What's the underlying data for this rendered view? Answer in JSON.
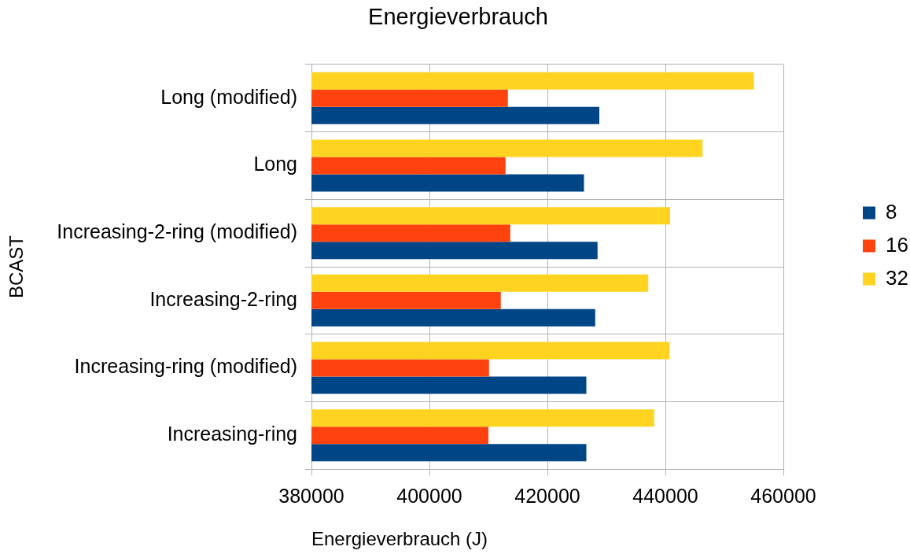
{
  "chart_data": {
    "type": "bar",
    "orientation": "horizontal",
    "title": "Energieverbrauch",
    "xlabel": "Energieverbrauch (J)",
    "ylabel": "BCAST",
    "categories": [
      "Long (modified)",
      "Long",
      "Increasing-2-ring (modified)",
      "Increasing-2-ring",
      "Increasing-ring (modified)",
      "Increasing-ring"
    ],
    "series": [
      {
        "name": "8",
        "color": "#004586",
        "values": [
          428800,
          426200,
          428500,
          428100,
          426600,
          426600
        ]
      },
      {
        "name": "16",
        "color": "#ff420e",
        "values": [
          413300,
          412900,
          413700,
          412100,
          410100,
          410000
        ]
      },
      {
        "name": "32",
        "color": "#ffd320",
        "values": [
          455000,
          446300,
          440800,
          437100,
          440700,
          438100
        ]
      }
    ],
    "xlim": [
      380000,
      460000
    ],
    "xticks": [
      380000,
      400000,
      420000,
      440000,
      460000
    ],
    "grid": true,
    "legend": "right"
  }
}
